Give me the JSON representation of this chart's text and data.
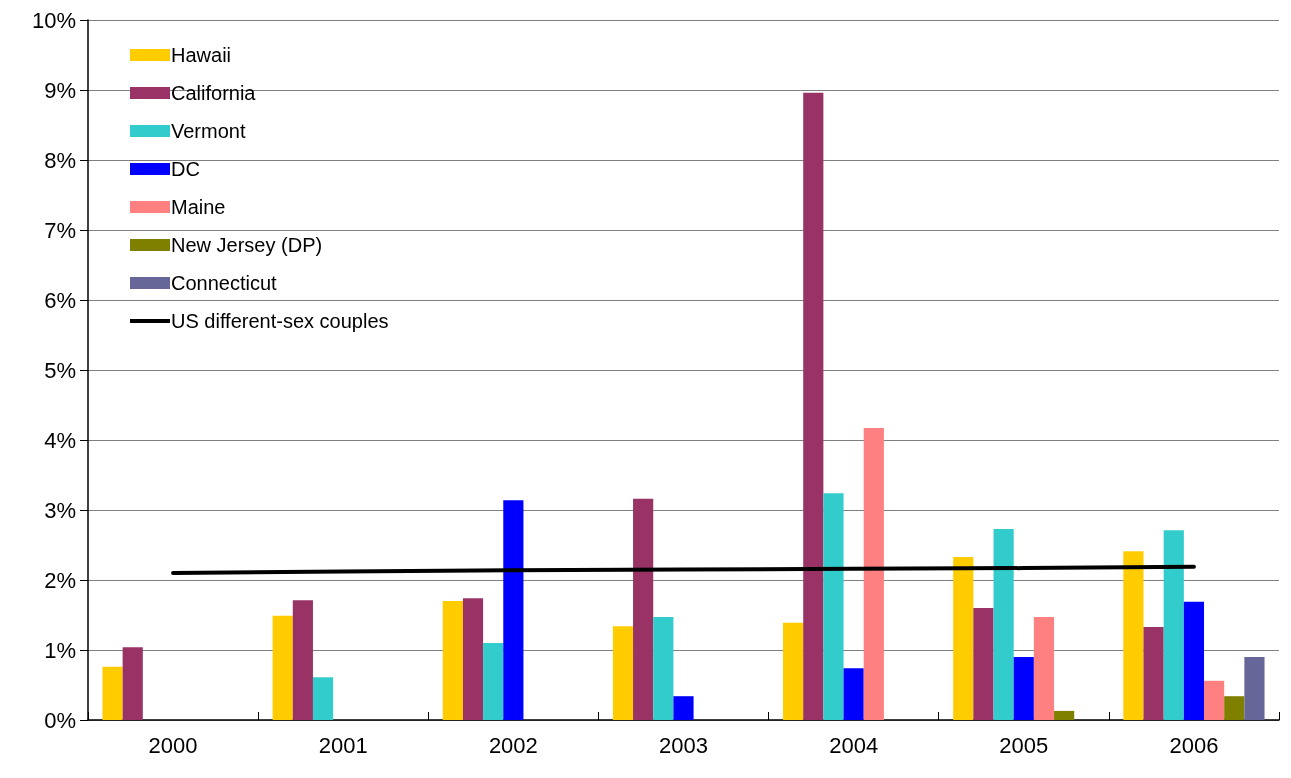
{
  "chart_data": {
    "type": "bar",
    "categories": [
      "2000",
      "2001",
      "2002",
      "2003",
      "2004",
      "2005",
      "2006"
    ],
    "series": [
      {
        "name": "Hawaii",
        "color": "#ffcc00",
        "values": [
          0.76,
          1.49,
          1.7,
          1.34,
          1.39,
          2.33,
          2.41
        ]
      },
      {
        "name": "California",
        "color": "#993366",
        "values": [
          1.04,
          1.71,
          1.74,
          3.16,
          8.96,
          1.6,
          1.33
        ]
      },
      {
        "name": "Vermont",
        "color": "#33cccc",
        "values": [
          null,
          0.61,
          1.1,
          1.47,
          3.24,
          2.73,
          2.71
        ]
      },
      {
        "name": "DC",
        "color": "#0000ff",
        "values": [
          null,
          null,
          3.14,
          0.34,
          0.74,
          0.9,
          1.69
        ]
      },
      {
        "name": "Maine",
        "color": "#ff8080",
        "values": [
          null,
          null,
          null,
          null,
          4.17,
          1.47,
          0.56
        ]
      },
      {
        "name": "New Jersey (DP)",
        "color": "#808000",
        "values": [
          null,
          null,
          null,
          null,
          null,
          0.13,
          0.34
        ]
      },
      {
        "name": "Connecticut",
        "color": "#666699",
        "values": [
          null,
          null,
          null,
          null,
          null,
          null,
          0.9
        ]
      },
      {
        "name": "US different-sex couples",
        "type": "line",
        "color": "#000000",
        "values": [
          2.1,
          2.12,
          2.14,
          2.15,
          2.16,
          2.17,
          2.19
        ]
      }
    ],
    "ylim": [
      0,
      10
    ],
    "yticks": [
      {
        "value": 0,
        "label": "0%"
      },
      {
        "value": 1,
        "label": "1%"
      },
      {
        "value": 2,
        "label": "2%"
      },
      {
        "value": 3,
        "label": "3%"
      },
      {
        "value": 4,
        "label": "4%"
      },
      {
        "value": 5,
        "label": "5%"
      },
      {
        "value": 6,
        "label": "6%"
      },
      {
        "value": 7,
        "label": "7%"
      },
      {
        "value": 8,
        "label": "8%"
      },
      {
        "value": 9,
        "label": "9%"
      },
      {
        "value": 10,
        "label": "10%"
      }
    ],
    "grid": "y",
    "legend": "top left",
    "marker": "none"
  }
}
